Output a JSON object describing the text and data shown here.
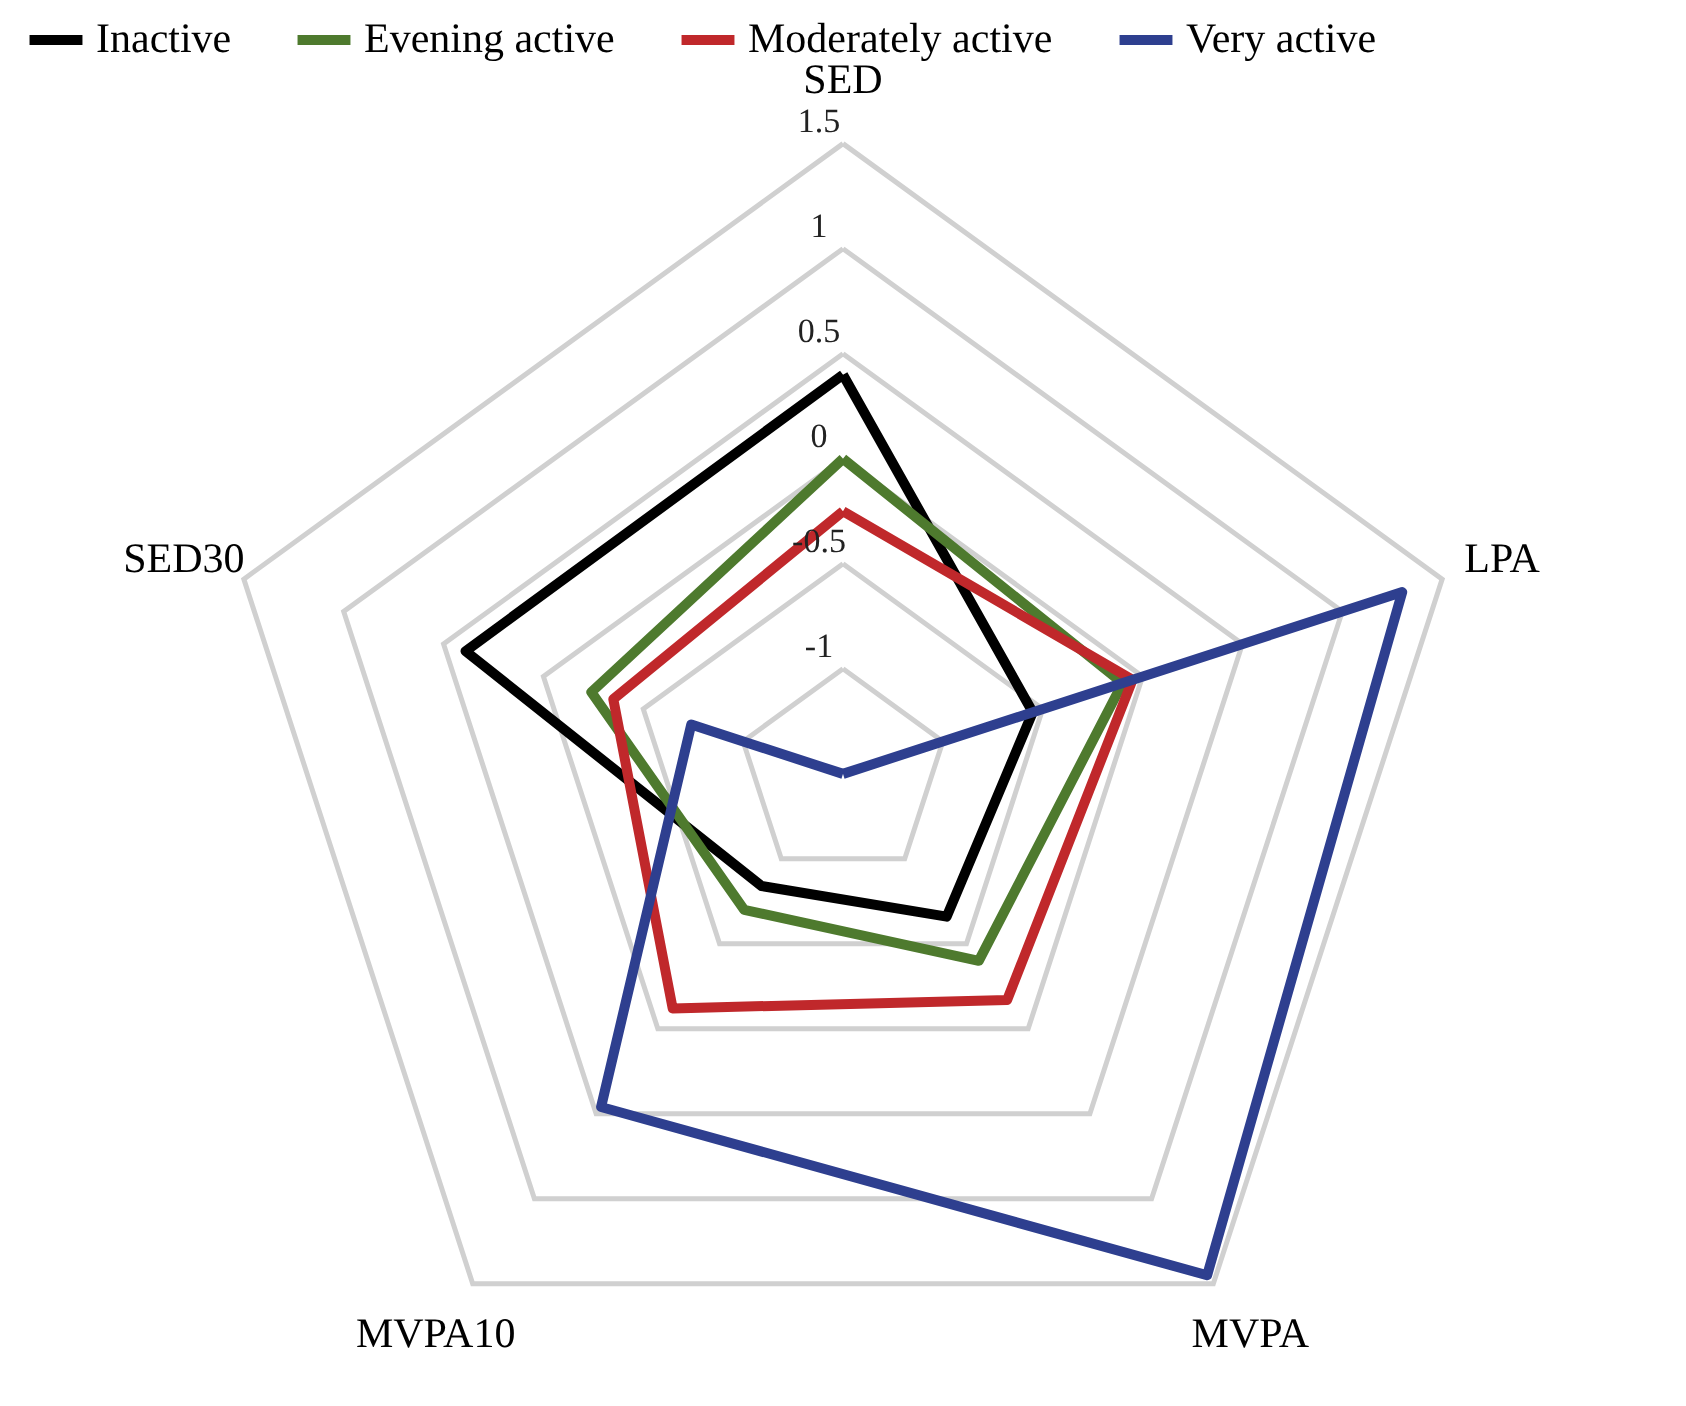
{
  "chart_data": {
    "type": "radar",
    "categories": [
      "SED",
      "LPA",
      "MVPA",
      "MVPA10",
      "SED30"
    ],
    "series": [
      {
        "name": "Inactive",
        "color": "#000000",
        "values": [
          0.4,
          -0.55,
          -0.66,
          -0.84,
          0.39
        ]
      },
      {
        "name": "Evening active",
        "color": "#4e7a2e",
        "values": [
          0.0,
          -0.1,
          -0.4,
          -0.7,
          -0.24
        ]
      },
      {
        "name": "Moderately active",
        "color": "#c0282b",
        "values": [
          -0.25,
          -0.05,
          -0.17,
          -0.12,
          -0.35
        ]
      },
      {
        "name": "Very active",
        "color": "#2e3f8f",
        "values": [
          -1.5,
          1.3,
          1.45,
          0.46,
          -0.74
        ]
      }
    ],
    "ylim": [
      -1.5,
      1.5
    ],
    "yticks": [
      -1,
      -0.5,
      0,
      0.5,
      1,
      1.5
    ],
    "grid": true,
    "legend": "top"
  }
}
